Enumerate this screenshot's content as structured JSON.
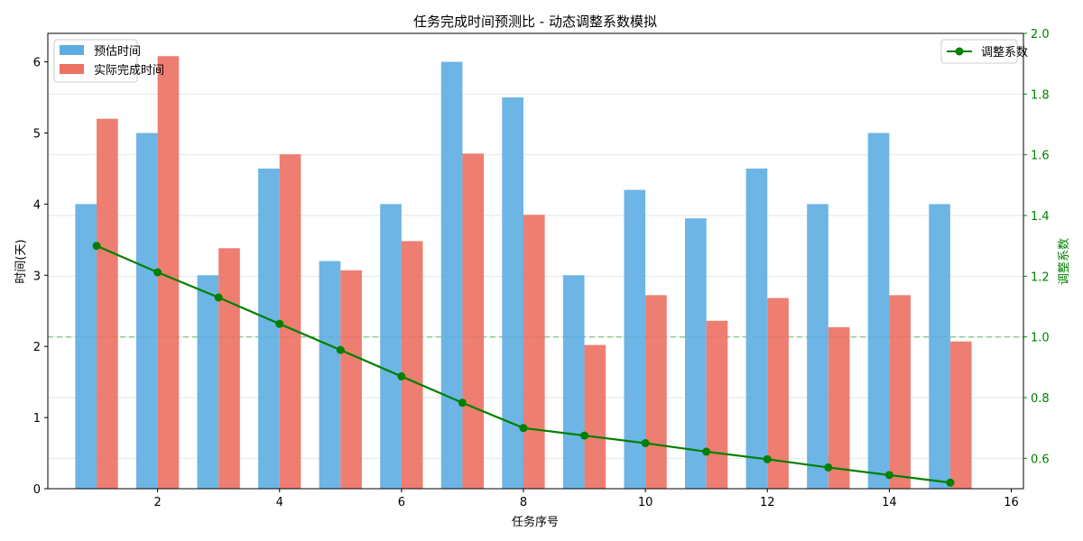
{
  "chart_data": {
    "type": "bar",
    "title": "任务完成时间预测比 - 动态调整系数模拟",
    "xlabel": "任务序号",
    "ylabel": "时间(天)",
    "ylabel_right": "调整系数",
    "x": [
      1,
      2,
      3,
      4,
      5,
      6,
      7,
      8,
      9,
      10,
      11,
      12,
      13,
      14,
      15
    ],
    "xlim": [
      0.2,
      16.2
    ],
    "ylim": [
      0,
      6.4
    ],
    "ylim_right": [
      0.5,
      2.0
    ],
    "xticks": [
      2,
      4,
      6,
      8,
      10,
      12,
      14,
      16
    ],
    "yticks": [
      0,
      1,
      2,
      3,
      4,
      5,
      6
    ],
    "yticks_right": [
      0.6,
      0.8,
      1.0,
      1.2,
      1.4,
      1.6,
      1.8,
      2.0
    ],
    "grid": true,
    "series": [
      {
        "name": "预估时间",
        "type": "bar",
        "axis": "left",
        "color": "#5DADE2",
        "values": [
          4.0,
          5.0,
          3.0,
          4.5,
          3.2,
          4.0,
          6.0,
          5.5,
          3.0,
          4.2,
          3.8,
          4.5,
          4.0,
          5.0,
          4.0
        ]
      },
      {
        "name": "实际完成时间",
        "type": "bar",
        "axis": "left",
        "color": "#EC7063",
        "values": [
          5.2,
          6.08,
          3.38,
          4.7,
          3.07,
          3.48,
          4.71,
          3.85,
          2.02,
          2.72,
          2.36,
          2.68,
          2.27,
          2.72,
          2.07
        ]
      },
      {
        "name": "调整系数",
        "type": "line",
        "axis": "right",
        "color": "#008000",
        "values": [
          1.3,
          1.213,
          1.13,
          1.043,
          0.957,
          0.87,
          0.783,
          0.7,
          0.675,
          0.65,
          0.622,
          0.597,
          0.57,
          0.545,
          0.52
        ]
      }
    ],
    "reference_line": {
      "axis": "right",
      "value": 1.0,
      "style": "dashed",
      "color": "#7DC67D"
    },
    "legend_left": "upper-left",
    "legend_right": "upper-right"
  }
}
